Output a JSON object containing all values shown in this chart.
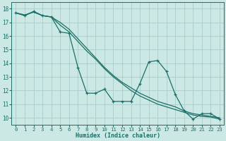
{
  "xlabel": "Humidex (Indice chaleur)",
  "bg_color": "#cce8e4",
  "grid_color": "#aaccca",
  "line_color": "#1a7068",
  "xlim": [
    -0.5,
    23.5
  ],
  "ylim": [
    9.5,
    18.5
  ],
  "xticks": [
    0,
    1,
    2,
    3,
    4,
    5,
    6,
    7,
    8,
    9,
    10,
    11,
    12,
    13,
    14,
    15,
    16,
    17,
    18,
    19,
    20,
    21,
    22,
    23
  ],
  "yticks": [
    10,
    11,
    12,
    13,
    14,
    15,
    16,
    17,
    18
  ],
  "zigzag_x": [
    0,
    1,
    2,
    3,
    4,
    5,
    6,
    7,
    8,
    9,
    10,
    11,
    12,
    13,
    14,
    15,
    16,
    17,
    18,
    19,
    20,
    21,
    22,
    23
  ],
  "zigzag_y": [
    17.7,
    17.5,
    17.8,
    17.5,
    17.4,
    16.3,
    16.2,
    13.7,
    11.8,
    11.8,
    12.1,
    11.2,
    11.2,
    11.2,
    12.5,
    14.1,
    14.2,
    13.4,
    11.7,
    10.5,
    9.9,
    10.3,
    10.3,
    9.9
  ],
  "smooth1_x": [
    0,
    1,
    2,
    3,
    4,
    5,
    6,
    7,
    8,
    9,
    10,
    11,
    12,
    13,
    14,
    15,
    16,
    17,
    18,
    19,
    20,
    21,
    22,
    23
  ],
  "smooth1_y": [
    17.7,
    17.55,
    17.75,
    17.5,
    17.4,
    17.0,
    16.5,
    15.8,
    15.1,
    14.4,
    13.7,
    13.1,
    12.6,
    12.2,
    11.8,
    11.5,
    11.2,
    11.0,
    10.8,
    10.5,
    10.3,
    10.2,
    10.1,
    10.0
  ],
  "smooth2_x": [
    0,
    1,
    2,
    3,
    4,
    5,
    6,
    7,
    8,
    9,
    10,
    11,
    12,
    13,
    14,
    15,
    16,
    17,
    18,
    19,
    20,
    21,
    22,
    23
  ],
  "smooth2_y": [
    17.7,
    17.5,
    17.8,
    17.5,
    17.4,
    16.8,
    16.3,
    15.6,
    14.9,
    14.3,
    13.6,
    13.0,
    12.5,
    12.0,
    11.6,
    11.3,
    11.0,
    10.8,
    10.6,
    10.4,
    10.2,
    10.1,
    10.05,
    9.9
  ]
}
